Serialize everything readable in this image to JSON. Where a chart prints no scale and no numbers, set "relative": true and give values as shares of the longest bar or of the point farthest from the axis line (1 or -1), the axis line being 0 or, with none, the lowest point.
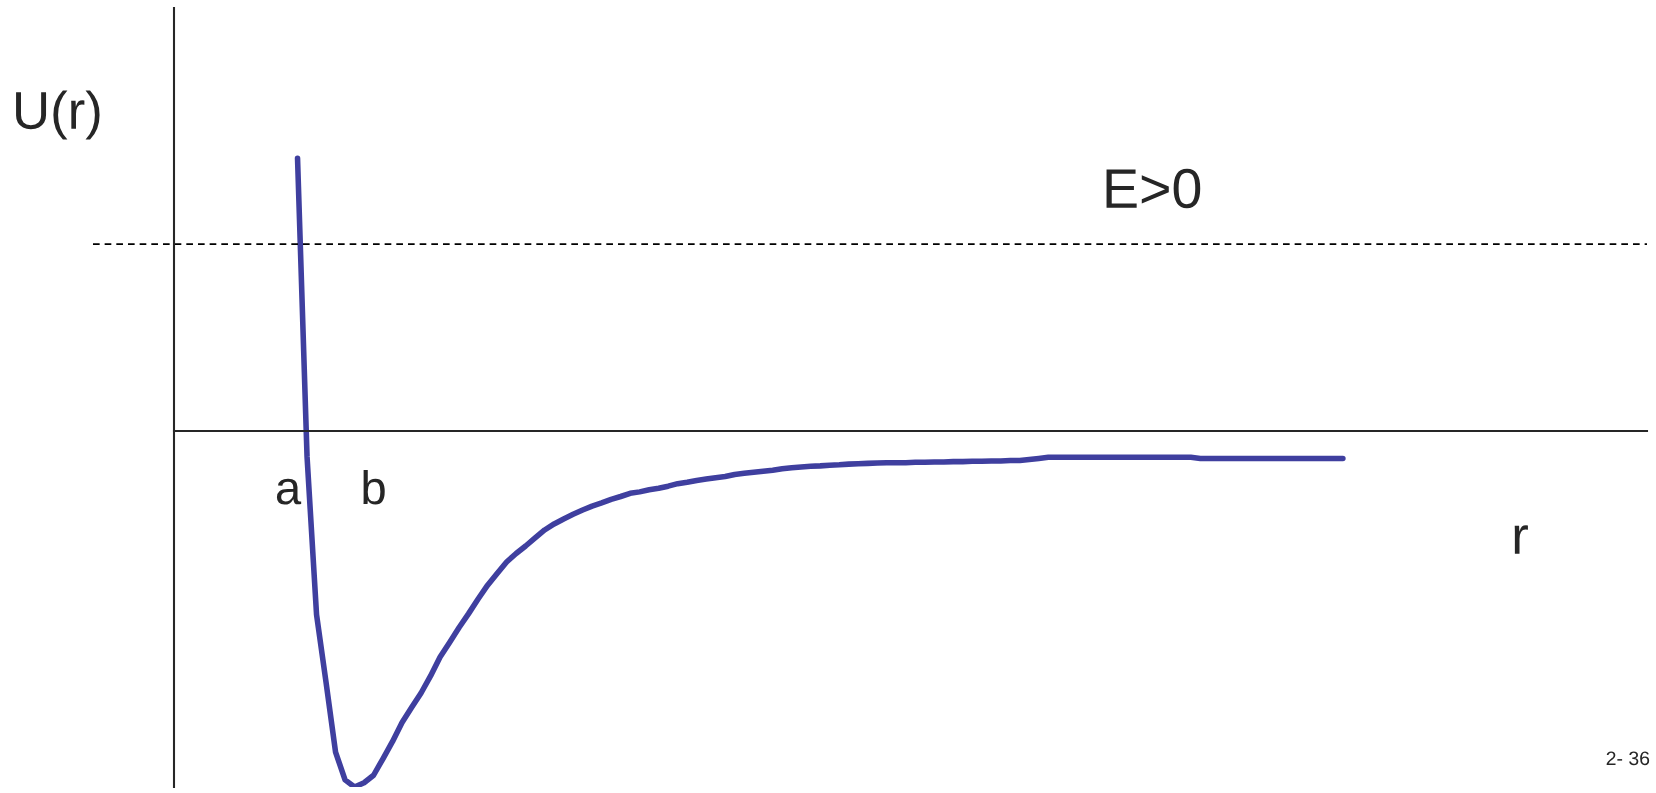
{
  "chart_data": {
    "type": "line",
    "relative": true,
    "xlabel": "r",
    "ylabel": "U(r)",
    "categories": [
      null,
      null,
      null,
      null,
      null,
      null,
      null,
      null,
      null,
      null,
      null,
      null,
      "a",
      null,
      null,
      null,
      null,
      null,
      null,
      null,
      null,
      "b",
      null,
      null,
      null,
      null,
      null,
      null,
      null,
      null,
      null,
      null,
      null,
      null,
      null,
      null,
      null,
      null,
      null,
      null,
      null,
      null,
      null,
      null,
      null,
      null,
      null,
      null,
      null,
      null,
      null,
      null,
      null,
      null,
      null,
      null,
      null,
      null,
      null,
      null,
      null,
      null,
      null,
      null,
      null,
      null,
      null,
      null,
      null,
      null,
      null,
      null,
      null,
      null,
      null,
      null,
      null,
      null,
      null,
      null,
      null,
      null,
      null,
      null,
      null,
      null,
      null,
      null,
      null,
      null,
      null,
      null,
      null,
      null,
      null,
      null,
      null,
      null,
      null,
      null,
      null,
      null,
      null,
      null,
      null,
      null,
      null,
      null,
      null,
      null,
      null,
      null,
      null,
      null,
      null,
      null,
      null,
      null,
      null,
      null,
      null,
      null,
      null,
      null,
      null,
      null,
      null,
      null,
      null,
      null,
      null,
      null,
      null,
      null,
      null,
      null,
      null,
      null,
      null,
      null,
      null,
      null,
      null,
      null,
      null,
      null,
      null,
      null,
      null,
      null,
      null,
      null,
      null,
      null,
      null,
      null
    ],
    "series": [
      {
        "color": "#3f3f9f",
        "values": [
          null,
          null,
          null,
          null,
          null,
          null,
          null,
          null,
          null,
          null,
          null,
          null,
          null,
          0.766,
          -0.072,
          -0.516,
          -0.706,
          -0.902,
          -0.98,
          -1.0,
          -0.988,
          -0.967,
          -0.92,
          -0.872,
          -0.819,
          -0.777,
          -0.736,
          -0.688,
          -0.635,
          -0.594,
          -0.552,
          -0.513,
          -0.472,
          -0.433,
          -0.4,
          -0.368,
          -0.344,
          -0.323,
          -0.3,
          -0.278,
          -0.261,
          -0.247,
          -0.234,
          -0.222,
          -0.211,
          -0.202,
          -0.192,
          -0.184,
          -0.175,
          -0.171,
          -0.165,
          -0.161,
          -0.155,
          -0.148,
          -0.144,
          -0.139,
          -0.135,
          -0.131,
          -0.128,
          -0.122,
          -0.119,
          -0.116,
          -0.113,
          -0.11,
          -0.106,
          -0.103,
          -0.101,
          -0.099,
          -0.098,
          -0.096,
          -0.095,
          -0.093,
          -0.092,
          -0.091,
          -0.09,
          -0.089,
          -0.089,
          -0.089,
          -0.088,
          -0.088,
          -0.087,
          -0.087,
          -0.086,
          -0.086,
          -0.085,
          -0.085,
          -0.084,
          -0.084,
          -0.083,
          -0.083,
          -0.08,
          -0.077,
          -0.074,
          -0.074,
          -0.074,
          -0.074,
          -0.074,
          -0.074,
          -0.074,
          -0.074,
          -0.074,
          -0.074,
          -0.074,
          -0.074,
          -0.074,
          -0.074,
          -0.074,
          -0.074,
          -0.077,
          -0.077,
          -0.077,
          -0.077,
          -0.077,
          -0.077,
          -0.077,
          -0.077,
          -0.077,
          -0.077,
          -0.077,
          -0.077,
          -0.077,
          -0.077,
          -0.077,
          -0.077,
          null,
          null,
          null,
          null,
          null,
          null,
          null,
          null,
          null,
          null,
          null,
          null,
          null,
          null,
          null,
          null,
          null,
          null,
          null,
          null,
          null,
          null,
          null,
          null,
          null,
          null,
          null,
          null,
          null,
          null,
          null,
          null
        ]
      }
    ],
    "ref_lines": [
      {
        "axis": "y",
        "value": 0.525,
        "label": "E>0",
        "color": "#000000",
        "line_style": "dashed"
      }
    ],
    "annotations": [
      "2- 36"
    ],
    "marker": "none",
    "line_style": "solid",
    "grid": false,
    "legend": false
  }
}
